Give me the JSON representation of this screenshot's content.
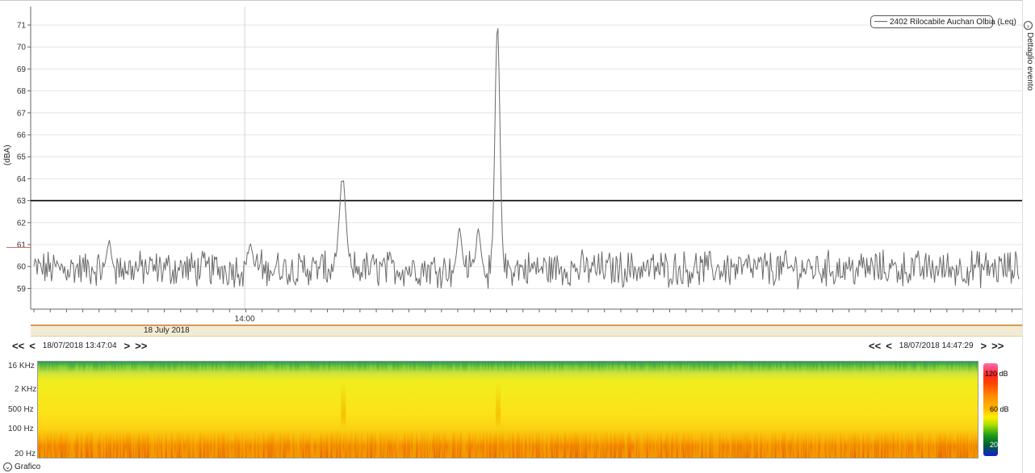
{
  "chart_data": {
    "type": "line",
    "title": "",
    "ylabel": "(dBA)",
    "xlabel": "",
    "ylim": [
      58.2,
      71.8
    ],
    "yticks": [
      59,
      60,
      61,
      62,
      63,
      64,
      65,
      66,
      67,
      68,
      69,
      70,
      71
    ],
    "ytick_labels": [
      "59",
      "60",
      "61",
      "62",
      "63",
      "64",
      "65",
      "66",
      "67",
      "68",
      "69",
      "70",
      "71"
    ],
    "x_start": "18/07/2018 13:47:04",
    "x_end": "18/07/2018 14:47:29",
    "x_major_tick": "14:00",
    "date_label": "18 July 2018",
    "grid": true,
    "legend_position": "top-right",
    "threshold": 63,
    "series": [
      {
        "name": "2402 Rilocabile Auchan Olbia (Leq)",
        "baseline": 59.9,
        "peaks": [
          {
            "time": "14:06:00",
            "value": 64.0
          },
          {
            "time": "14:15:30",
            "value": 71.0
          },
          {
            "time": "14:14:20",
            "value": 61.7
          },
          {
            "time": "14:13:10",
            "value": 61.8
          },
          {
            "time": "13:51:40",
            "value": 61.1
          },
          {
            "time": "14:00:20",
            "value": 61.0
          }
        ]
      }
    ]
  },
  "legend": {
    "label": "2402 Rilocabile Auchan Olbia (Leq)"
  },
  "side_panel": {
    "label": "Dettaglio evento"
  },
  "navigation": {
    "first": "<<",
    "prev": "<",
    "next": ">",
    "last": ">>",
    "start_ts": "18/07/2018 13:47:04",
    "end_ts": "18/07/2018 14:47:29"
  },
  "spectrogram": {
    "freq_labels": [
      "16 KHz",
      "2 KHz",
      "500 Hz",
      "100 Hz",
      "20 Hz"
    ],
    "colorbar": {
      "max": "120 dB",
      "mid": "60 dB",
      "min": "20 dB"
    }
  },
  "footer": {
    "label": "Grafico"
  }
}
